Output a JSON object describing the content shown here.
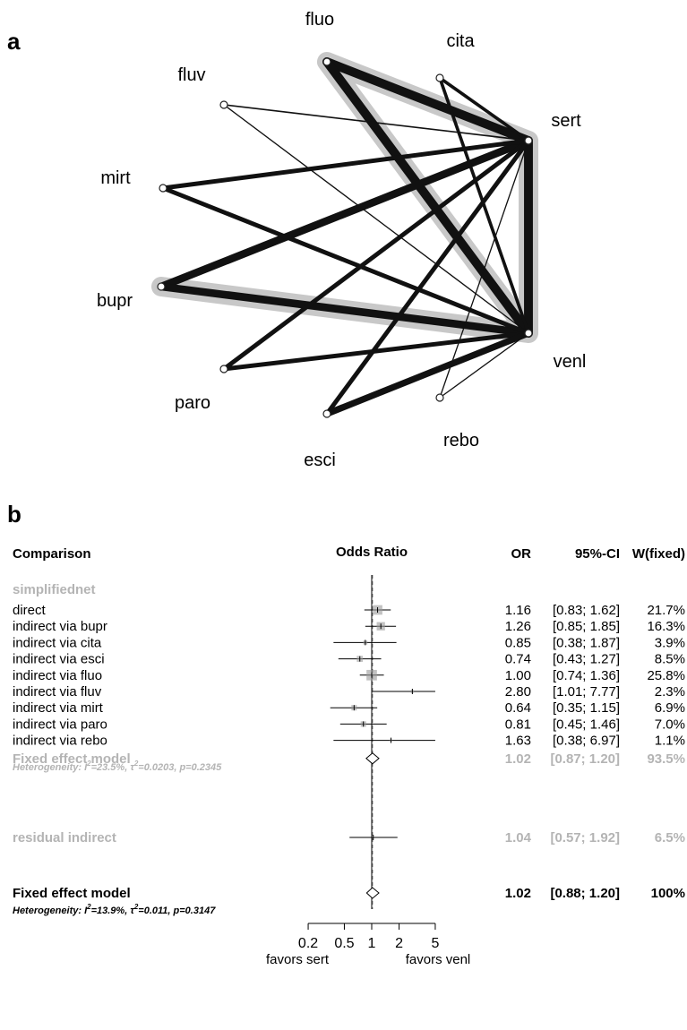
{
  "panel_a_label": "a",
  "panel_b_label": "b",
  "colors": {
    "edge": "#111111",
    "highlight": "#c8c8c8",
    "gray_text": "#b4b4b4",
    "box": "#9a9a9a"
  },
  "chart_data": [
    {
      "type": "network",
      "nodes": [
        "fluo",
        "cita",
        "sert",
        "fluv",
        "mirt",
        "bupr",
        "venl",
        "paro",
        "esci",
        "rebo"
      ],
      "edges": [
        {
          "from": "fluo",
          "to": "sert",
          "weight": 3
        },
        {
          "from": "fluo",
          "to": "venl",
          "weight": 3
        },
        {
          "from": "sert",
          "to": "venl",
          "weight": 3
        },
        {
          "from": "bupr",
          "to": "sert",
          "weight": 2.6
        },
        {
          "from": "bupr",
          "to": "venl",
          "weight": 2.6
        },
        {
          "from": "cita",
          "to": "sert",
          "weight": 1.1
        },
        {
          "from": "cita",
          "to": "venl",
          "weight": 1.1
        },
        {
          "from": "fluv",
          "to": "sert",
          "weight": 0.5
        },
        {
          "from": "fluv",
          "to": "venl",
          "weight": 0.4
        },
        {
          "from": "mirt",
          "to": "sert",
          "weight": 1.5
        },
        {
          "from": "mirt",
          "to": "venl",
          "weight": 1.5
        },
        {
          "from": "paro",
          "to": "sert",
          "weight": 1.5
        },
        {
          "from": "paro",
          "to": "venl",
          "weight": 1.5
        },
        {
          "from": "esci",
          "to": "sert",
          "weight": 1.5
        },
        {
          "from": "esci",
          "to": "venl",
          "weight": 2.2
        },
        {
          "from": "rebo",
          "to": "sert",
          "weight": 0.4
        },
        {
          "from": "rebo",
          "to": "venl",
          "weight": 0.4
        }
      ],
      "highlighted_path": [
        "bupr",
        "venl",
        "sert",
        "fluo",
        "venl"
      ]
    },
    {
      "type": "forest",
      "headers": {
        "comparison": "Comparison",
        "plot": "Odds Ratio",
        "or": "OR",
        "ci": "95%-CI",
        "weight": "W(fixed)"
      },
      "group_label": "simplifiednet",
      "rows": [
        {
          "label": "direct",
          "or": 1.16,
          "lo": 0.83,
          "hi": 1.62,
          "or_text": "1.16",
          "ci_text": "[0.83; 1.62]",
          "w_text": "21.7%",
          "weight": 21.7
        },
        {
          "label": "indirect via bupr",
          "or": 1.26,
          "lo": 0.85,
          "hi": 1.85,
          "or_text": "1.26",
          "ci_text": "[0.85; 1.85]",
          "w_text": "16.3%",
          "weight": 16.3
        },
        {
          "label": "indirect via cita",
          "or": 0.85,
          "lo": 0.38,
          "hi": 1.87,
          "or_text": "0.85",
          "ci_text": "[0.38; 1.87]",
          "w_text": "3.9%",
          "weight": 3.9
        },
        {
          "label": "indirect via esci",
          "or": 0.74,
          "lo": 0.43,
          "hi": 1.27,
          "or_text": "0.74",
          "ci_text": "[0.43; 1.27]",
          "w_text": "8.5%",
          "weight": 8.5
        },
        {
          "label": "indirect via fluo",
          "or": 1.0,
          "lo": 0.74,
          "hi": 1.36,
          "or_text": "1.00",
          "ci_text": "[0.74; 1.36]",
          "w_text": "25.8%",
          "weight": 25.8
        },
        {
          "label": "indirect via fluv",
          "or": 2.8,
          "lo": 1.01,
          "hi": 7.77,
          "or_text": "2.80",
          "ci_text": "[1.01; 7.77]",
          "w_text": "2.3%",
          "weight": 2.3
        },
        {
          "label": "indirect via mirt",
          "or": 0.64,
          "lo": 0.35,
          "hi": 1.15,
          "or_text": "0.64",
          "ci_text": "[0.35; 1.15]",
          "w_text": "6.9%",
          "weight": 6.9
        },
        {
          "label": "indirect via paro",
          "or": 0.81,
          "lo": 0.45,
          "hi": 1.46,
          "or_text": "0.81",
          "ci_text": "[0.45; 1.46]",
          "w_text": "7.0%",
          "weight": 7.0
        },
        {
          "label": "indirect via rebo",
          "or": 1.63,
          "lo": 0.38,
          "hi": 6.97,
          "or_text": "1.63",
          "ci_text": "[0.38; 6.97]",
          "w_text": "1.1%",
          "weight": 1.1
        }
      ],
      "group_summary": {
        "label": "Fixed effect model",
        "or": 1.02,
        "lo": 0.87,
        "hi": 1.2,
        "or_text": "1.02",
        "ci_text": "[0.87; 1.20]",
        "w_text": "93.5%"
      },
      "group_heterogeneity": {
        "prefix": "Heterogeneity: ",
        "i2_symbol": "I",
        "i2_value": "=23.5%, ",
        "tau2_symbol": "τ",
        "tau2_value": "=0.0203, p=0.2345"
      },
      "residual": {
        "label": "residual indirect",
        "or": 1.04,
        "lo": 0.57,
        "hi": 1.92,
        "or_text": "1.04",
        "ci_text": "[0.57; 1.92]",
        "w_text": "6.5%"
      },
      "overall": {
        "label": "Fixed effect model",
        "or": 1.02,
        "lo": 0.88,
        "hi": 1.2,
        "or_text": "1.02",
        "ci_text": "[0.88; 1.20]",
        "w_text": "100%"
      },
      "overall_heterogeneity": {
        "prefix": "Heterogeneity: ",
        "i2_symbol": "I",
        "i2_value": "=13.9%, ",
        "tau2_symbol": "τ",
        "tau2_value": "=0.011, p=0.3147"
      },
      "x_axis": {
        "scale": "log",
        "ticks": [
          0.2,
          0.5,
          1,
          2,
          5
        ],
        "tick_labels": [
          "0.2",
          "0.5",
          "1",
          "2",
          "5"
        ],
        "xlim": [
          0.2,
          5
        ]
      },
      "favors_left": "favors sert",
      "favors_right": "favors venl"
    }
  ]
}
